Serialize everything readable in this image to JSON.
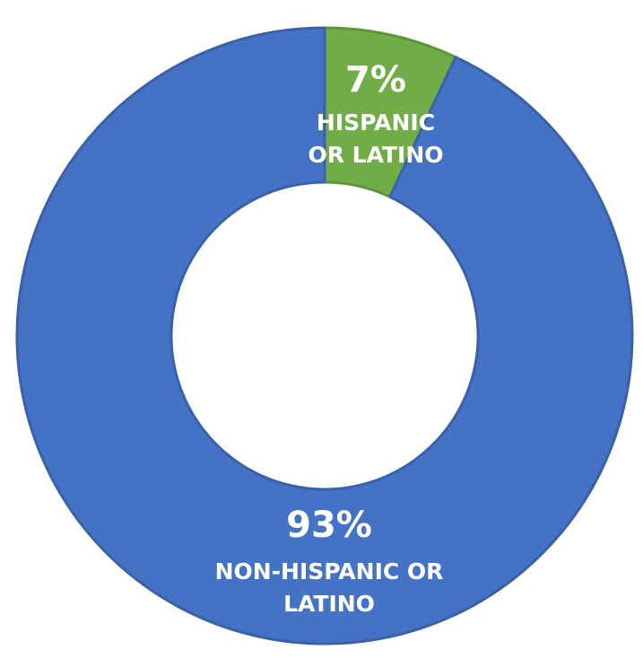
{
  "chart_data": {
    "type": "pie",
    "donut": true,
    "categories": [
      "HISPANIC OR LATINO",
      "NON-HISPANIC OR LATINO"
    ],
    "values": [
      7,
      93
    ],
    "value_labels": [
      "7%",
      "93%"
    ],
    "label_lines": [
      [
        "HISPANIC",
        "OR LATINO"
      ],
      [
        "NON-HISPANIC OR",
        "LATINO"
      ]
    ],
    "colors": [
      "#70AD47",
      "#4472C4"
    ],
    "title": "",
    "legend": "none"
  }
}
